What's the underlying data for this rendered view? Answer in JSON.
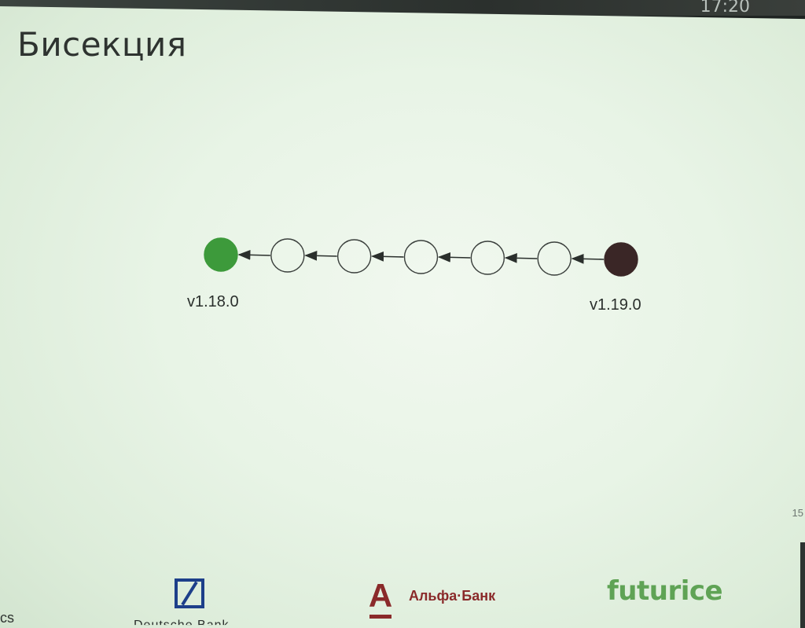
{
  "slide": {
    "title": "Бисекция",
    "page_number": "15",
    "status_time": "17:20"
  },
  "diagram": {
    "commits": [
      {
        "state": "good",
        "label": "v1.18.0",
        "color": "#3d9a3b"
      },
      {
        "state": "untested",
        "label": "",
        "color": "none"
      },
      {
        "state": "untested",
        "label": "",
        "color": "none"
      },
      {
        "state": "untested",
        "label": "",
        "color": "none"
      },
      {
        "state": "untested",
        "label": "",
        "color": "none"
      },
      {
        "state": "untested",
        "label": "",
        "color": "none"
      },
      {
        "state": "bad",
        "label": "v1.19.0",
        "color": "#3a2626"
      }
    ],
    "arrow_direction": "right-to-left",
    "labels": {
      "start": "v1.18.0",
      "end": "v1.19.0"
    }
  },
  "sponsors": {
    "left_partial": "cs",
    "deutsche_bank_partial": "Deutsche Bank",
    "alfa_letter": "A",
    "alfa_name": "Альфа·Банк",
    "futurice": "futurice"
  },
  "colors": {
    "good": "#3d9a3b",
    "bad": "#3a2626",
    "db_blue": "#1d3f8a",
    "alfa_red": "#8a2a2a",
    "futurice_green": "#5fa355"
  }
}
